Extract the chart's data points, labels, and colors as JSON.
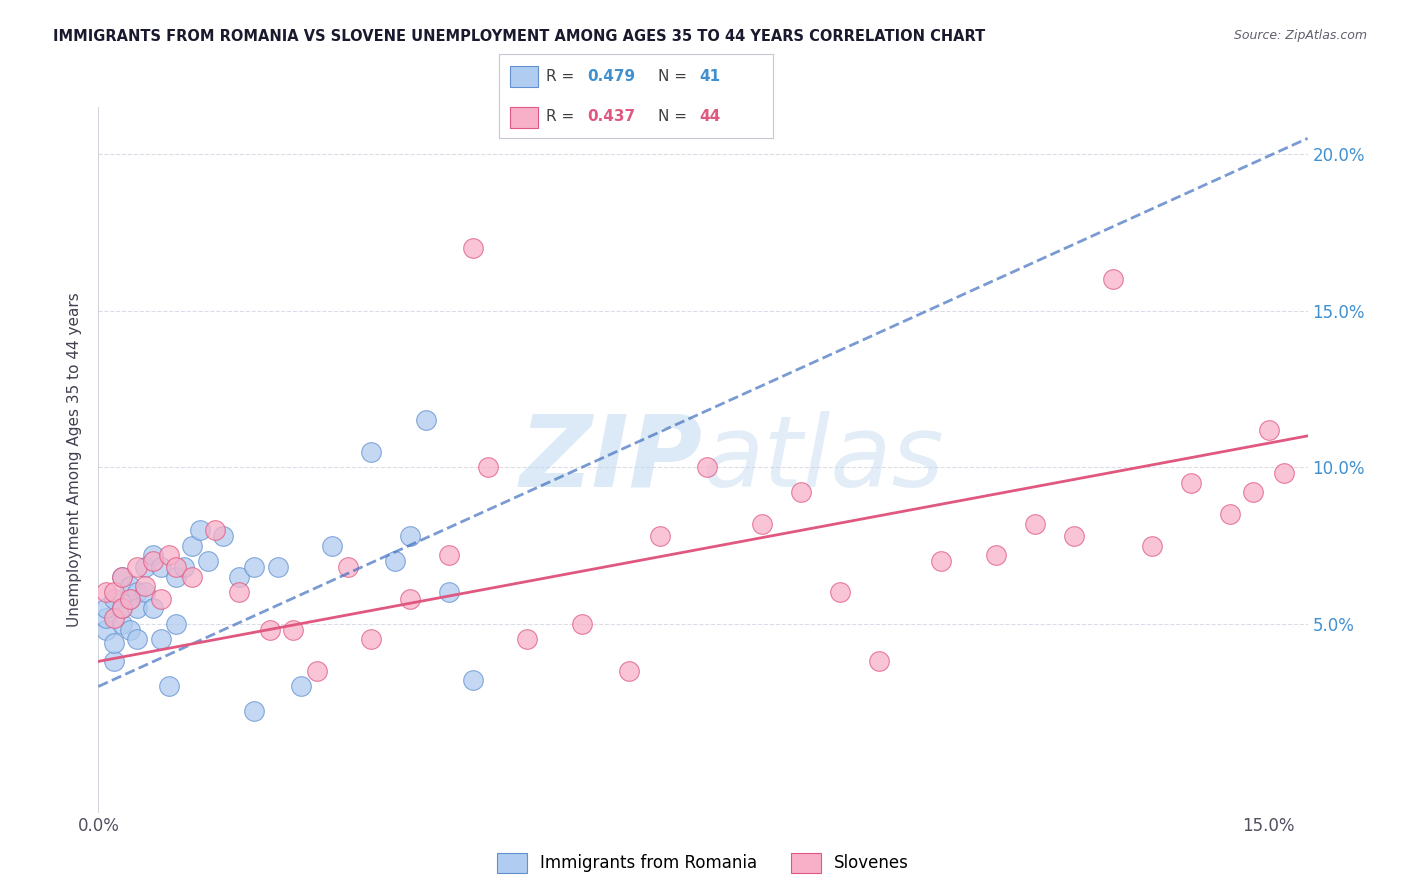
{
  "title": "IMMIGRANTS FROM ROMANIA VS SLOVENE UNEMPLOYMENT AMONG AGES 35 TO 44 YEARS CORRELATION CHART",
  "source": "Source: ZipAtlas.com",
  "ylabel": "Unemployment Among Ages 35 to 44 years",
  "xlim": [
    0.0,
    0.155
  ],
  "ylim": [
    -0.01,
    0.215
  ],
  "xticks": [
    0.0,
    0.15
  ],
  "yticks_right": [
    0.05,
    0.1,
    0.15,
    0.2
  ],
  "romania_R": "0.479",
  "romania_N": "41",
  "slovene_R": "0.437",
  "slovene_N": "44",
  "romania_color": "#b0ccf0",
  "slovene_color": "#f8b0c8",
  "romania_edge_color": "#6090d0",
  "slovene_edge_color": "#e05880",
  "romania_trend_color": "#4070c0",
  "slovene_trend_color": "#e05880",
  "romania_dash_color": "#88b0e0",
  "watermark_color": "#c8ddf0",
  "background_color": "#ffffff",
  "grid_color": "#dcdce8",
  "romania_x": [
    0.001,
    0.001,
    0.001,
    0.002,
    0.002,
    0.002,
    0.003,
    0.003,
    0.003,
    0.004,
    0.004,
    0.004,
    0.005,
    0.005,
    0.005,
    0.006,
    0.006,
    0.007,
    0.007,
    0.008,
    0.008,
    0.009,
    0.01,
    0.01,
    0.011,
    0.012,
    0.013,
    0.014,
    0.016,
    0.018,
    0.02,
    0.023,
    0.026,
    0.03,
    0.035,
    0.038,
    0.04,
    0.042,
    0.045,
    0.048,
    0.02
  ],
  "romania_y": [
    0.048,
    0.052,
    0.055,
    0.038,
    0.044,
    0.058,
    0.05,
    0.055,
    0.065,
    0.048,
    0.058,
    0.062,
    0.045,
    0.06,
    0.055,
    0.068,
    0.06,
    0.072,
    0.055,
    0.045,
    0.068,
    0.03,
    0.05,
    0.065,
    0.068,
    0.075,
    0.08,
    0.07,
    0.078,
    0.065,
    0.022,
    0.068,
    0.03,
    0.075,
    0.105,
    0.07,
    0.078,
    0.115,
    0.06,
    0.032,
    0.068
  ],
  "slovene_x": [
    0.001,
    0.002,
    0.002,
    0.003,
    0.003,
    0.004,
    0.005,
    0.006,
    0.007,
    0.008,
    0.009,
    0.01,
    0.012,
    0.015,
    0.018,
    0.022,
    0.025,
    0.028,
    0.032,
    0.035,
    0.04,
    0.045,
    0.048,
    0.055,
    0.062,
    0.068,
    0.072,
    0.078,
    0.085,
    0.09,
    0.095,
    0.1,
    0.108,
    0.115,
    0.12,
    0.125,
    0.13,
    0.135,
    0.14,
    0.145,
    0.148,
    0.15,
    0.152,
    0.05
  ],
  "slovene_y": [
    0.06,
    0.052,
    0.06,
    0.055,
    0.065,
    0.058,
    0.068,
    0.062,
    0.07,
    0.058,
    0.072,
    0.068,
    0.065,
    0.08,
    0.06,
    0.048,
    0.048,
    0.035,
    0.068,
    0.045,
    0.058,
    0.072,
    0.17,
    0.045,
    0.05,
    0.035,
    0.078,
    0.1,
    0.082,
    0.092,
    0.06,
    0.038,
    0.07,
    0.072,
    0.082,
    0.078,
    0.16,
    0.075,
    0.095,
    0.085,
    0.092,
    0.112,
    0.098,
    0.1
  ],
  "romania_trend_x0": 0.0,
  "romania_trend_y0": 0.03,
  "romania_trend_x1": 0.155,
  "romania_trend_y1": 0.205,
  "slovene_trend_x0": 0.0,
  "slovene_trend_y0": 0.038,
  "slovene_trend_x1": 0.155,
  "slovene_trend_y1": 0.11
}
